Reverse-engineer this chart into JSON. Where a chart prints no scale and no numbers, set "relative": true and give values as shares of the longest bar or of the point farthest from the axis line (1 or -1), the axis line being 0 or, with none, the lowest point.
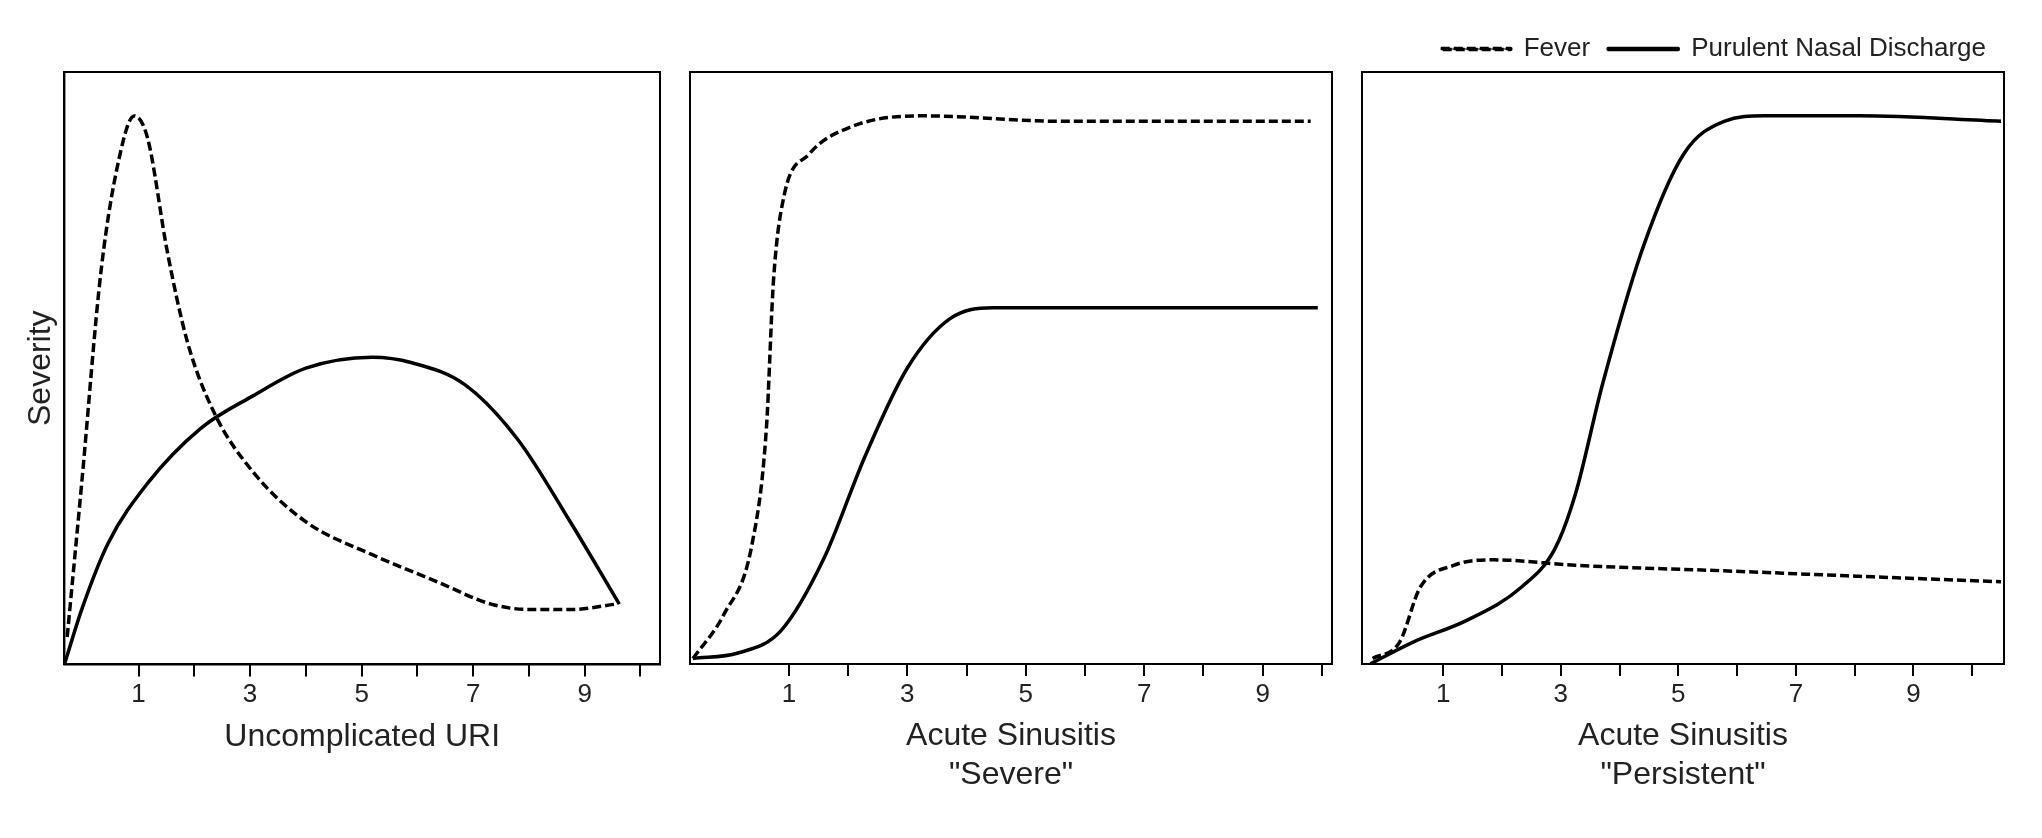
{
  "chart_data": [
    {
      "type": "line",
      "relative": true,
      "ylabel": "Severity",
      "xlabel": "Uncomplicated URI",
      "xlim": [
        -0.33,
        10.35
      ],
      "xticks": [
        1,
        {
          "value": 2,
          "label": null
        },
        3,
        {
          "value": 4,
          "label": null
        },
        5,
        {
          "value": 6,
          "label": null
        },
        7,
        {
          "value": 8,
          "label": null
        },
        9,
        {
          "value": 10,
          "label": null
        }
      ],
      "tick_labels": "x",
      "grid": false,
      "legend": false,
      "marker": "none",
      "series": [
        {
          "color": "#000000",
          "line_style": "dashed",
          "x": [
            -0.28,
            -0.02,
            0.33,
            0.69,
            0.92,
            1.16,
            1.52,
            1.87,
            2.35,
            3.06,
            4.0,
            5.19,
            6.37,
            7.32,
            8.03,
            8.74,
            9.57
          ],
          "values": [
            0.05,
            0.33,
            0.72,
            0.94,
            1.0,
            0.96,
            0.75,
            0.59,
            0.46,
            0.35,
            0.26,
            0.2,
            0.15,
            0.11,
            0.1,
            0.1,
            0.11
          ]
        },
        {
          "color": "#000000",
          "line_style": "solid",
          "x": [
            -0.33,
            -0.02,
            0.45,
            1.16,
            2.11,
            3.06,
            4.0,
            5.19,
            5.9,
            6.85,
            7.8,
            8.74,
            9.62
          ],
          "values": [
            0,
            0.1,
            0.22,
            0.33,
            0.43,
            0.49,
            0.54,
            0.56,
            0.55,
            0.51,
            0.41,
            0.26,
            0.11
          ]
        }
      ]
    },
    {
      "type": "line",
      "relative": true,
      "xlabel": "Acute Sinusitis\n\"Severe\"",
      "xlim": [
        -0.67,
        10.17
      ],
      "xticks": [
        1,
        {
          "value": 2,
          "label": null
        },
        3,
        {
          "value": 4,
          "label": null
        },
        5,
        {
          "value": 6,
          "label": null
        },
        7,
        {
          "value": 8,
          "label": null
        },
        9,
        {
          "value": 10,
          "label": null
        }
      ],
      "tick_labels": "x",
      "grid": false,
      "legend": false,
      "marker": "none",
      "series": [
        {
          "color": "#000000",
          "line_style": "dashed",
          "x": [
            -0.62,
            -0.1,
            0.38,
            0.62,
            0.74,
            0.91,
            1.34,
            2.05,
            3.25,
            5.63,
            9.81
          ],
          "values": [
            0.01,
            0.09,
            0.22,
            0.43,
            0.7,
            0.85,
            0.93,
            0.98,
            1.0,
            0.99,
            0.99
          ]
        },
        {
          "color": "#000000",
          "line_style": "solid",
          "x": [
            -0.62,
            0.14,
            0.86,
            1.58,
            2.29,
            3.0,
            3.72,
            4.44,
            5.16,
            9.93
          ],
          "values": [
            0.01,
            0.02,
            0.06,
            0.19,
            0.38,
            0.54,
            0.63,
            0.65,
            0.65,
            0.65
          ]
        }
      ]
    },
    {
      "type": "line",
      "relative": true,
      "xlabel": "Acute Sinusitis\n\"Persistent\"",
      "xlim": [
        -0.38,
        10.54
      ],
      "xticks": [
        1,
        {
          "value": 2,
          "label": null
        },
        3,
        {
          "value": 4,
          "label": null
        },
        5,
        {
          "value": 6,
          "label": null
        },
        7,
        {
          "value": 8,
          "label": null
        },
        9,
        {
          "value": 10,
          "label": null
        }
      ],
      "tick_labels": "x",
      "grid": false,
      "legend": "top right",
      "marker": "none",
      "series": [
        {
          "name": "Fever",
          "color": "#000000",
          "line_style": "dashed",
          "x": [
            -0.2,
            0.26,
            0.61,
            1.18,
            1.87,
            3.25,
            5.78,
            8.08,
            10.49
          ],
          "values": [
            0.01,
            0.04,
            0.14,
            0.18,
            0.19,
            0.18,
            0.17,
            0.16,
            0.15
          ]
        },
        {
          "name": "Purulent Nasal Discharge",
          "color": "#000000",
          "line_style": "solid",
          "x": [
            -0.24,
            0.49,
            1.41,
            2.33,
            2.9,
            3.25,
            3.71,
            4.4,
            5.09,
            5.78,
            6.47,
            8.08,
            10.49
          ],
          "values": [
            0,
            0.04,
            0.08,
            0.14,
            0.21,
            0.31,
            0.51,
            0.76,
            0.93,
            0.99,
            1.0,
            1.0,
            0.99
          ]
        }
      ]
    }
  ]
}
